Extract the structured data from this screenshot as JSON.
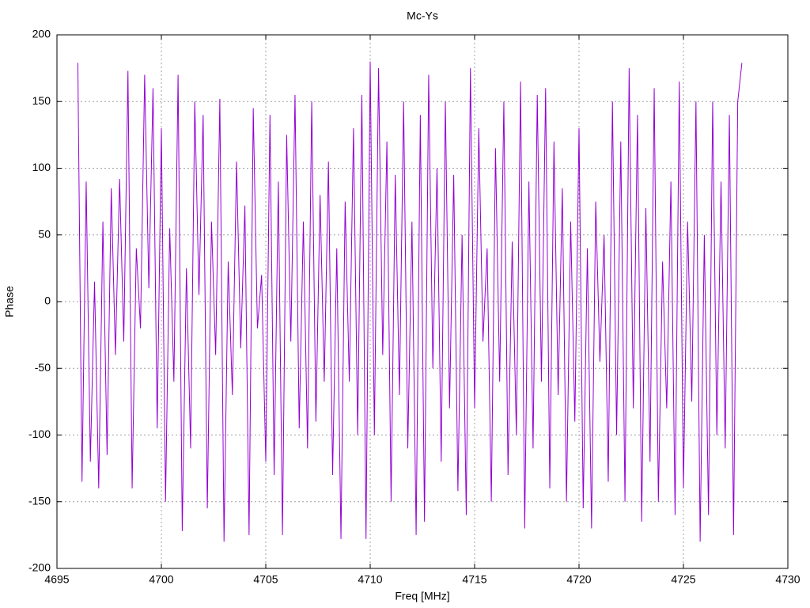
{
  "chart_data": {
    "type": "line",
    "title": "Mc-Ys",
    "xlabel": "Freq [MHz]",
    "ylabel": "Phase",
    "xlim": [
      4695,
      4730
    ],
    "xticks": [
      4695,
      4700,
      4705,
      4710,
      4715,
      4720,
      4725,
      4730
    ],
    "ylim": [
      -200,
      200
    ],
    "yticks": [
      -200,
      -150,
      -100,
      -50,
      0,
      50,
      100,
      150,
      200
    ],
    "grid": true,
    "series": [
      {
        "color": "#9400d3",
        "x": [
          4696,
          4696.2,
          4696.4,
          4696.6,
          4696.8,
          4697,
          4697.2,
          4697.4,
          4697.6,
          4697.8,
          4698,
          4698.2,
          4698.4,
          4698.6,
          4698.8,
          4699,
          4699.2,
          4699.4,
          4699.6,
          4699.8,
          4700,
          4700.2,
          4700.4,
          4700.6,
          4700.8,
          4701,
          4701.2,
          4701.4,
          4701.6,
          4701.8,
          4702,
          4702.2,
          4702.4,
          4702.6,
          4702.8,
          4703,
          4703.2,
          4703.4,
          4703.6,
          4703.8,
          4704,
          4704.2,
          4704.4,
          4704.6,
          4704.8,
          4705,
          4705.2,
          4705.4,
          4705.6,
          4705.8,
          4706,
          4706.2,
          4706.4,
          4706.6,
          4706.8,
          4707,
          4707.2,
          4707.4,
          4707.6,
          4707.8,
          4708,
          4708.2,
          4708.4,
          4708.6,
          4708.8,
          4709,
          4709.2,
          4709.4,
          4709.6,
          4709.8,
          4710,
          4710.2,
          4710.4,
          4710.6,
          4710.8,
          4711,
          4711.2,
          4711.4,
          4711.6,
          4711.8,
          4712,
          4712.2,
          4712.4,
          4712.6,
          4712.8,
          4713,
          4713.2,
          4713.4,
          4713.6,
          4713.8,
          4714,
          4714.2,
          4714.4,
          4714.6,
          4714.8,
          4715,
          4715.2,
          4715.4,
          4715.6,
          4715.8,
          4716,
          4716.2,
          4716.4,
          4716.6,
          4716.8,
          4717,
          4717.2,
          4717.4,
          4717.6,
          4717.8,
          4718,
          4718.2,
          4718.4,
          4718.6,
          4718.8,
          4719,
          4719.2,
          4719.4,
          4719.6,
          4719.8,
          4720,
          4720.2,
          4720.4,
          4720.6,
          4720.8,
          4721,
          4721.2,
          4721.4,
          4721.6,
          4721.8,
          4722,
          4722.2,
          4722.4,
          4722.6,
          4722.8,
          4723,
          4723.2,
          4723.4,
          4723.6,
          4723.8,
          4724,
          4724.2,
          4724.4,
          4724.6,
          4724.8,
          4725,
          4725.2,
          4725.4,
          4725.6,
          4725.8,
          4726,
          4726.2,
          4726.4,
          4726.6,
          4726.8,
          4727,
          4727.2,
          4727.4,
          4727.6,
          4727.8
        ],
        "values": [
          179,
          -135,
          90,
          -120,
          15,
          -140,
          60,
          -115,
          85,
          -40,
          92,
          -30,
          173,
          -140,
          40,
          -20,
          170,
          10,
          160,
          -95,
          130,
          -150,
          55,
          -60,
          170,
          -172,
          25,
          -110,
          150,
          5,
          140,
          -155,
          60,
          -40,
          152,
          -180,
          30,
          -70,
          105,
          -35,
          72,
          -175,
          145,
          -20,
          20,
          -120,
          140,
          -130,
          90,
          -175,
          125,
          -30,
          155,
          -95,
          60,
          -110,
          150,
          -90,
          80,
          -60,
          105,
          -130,
          40,
          -178,
          75,
          -60,
          130,
          -100,
          155,
          -178,
          180,
          -100,
          175,
          -40,
          120,
          -150,
          95,
          -70,
          150,
          -110,
          60,
          -175,
          140,
          -165,
          170,
          -50,
          100,
          -120,
          150,
          -80,
          95,
          -142,
          50,
          -160,
          175,
          -80,
          130,
          -30,
          40,
          -150,
          115,
          -60,
          150,
          -130,
          45,
          -100,
          165,
          -170,
          90,
          -110,
          155,
          -60,
          160,
          -140,
          120,
          -70,
          85,
          -150,
          60,
          -90,
          130,
          -155,
          40,
          -170,
          75,
          -45,
          50,
          -135,
          150,
          -100,
          120,
          -150,
          175,
          -80,
          140,
          -165,
          70,
          -120,
          160,
          -150,
          30,
          -80,
          90,
          -160,
          165,
          -140,
          60,
          -75,
          150,
          -180,
          50,
          -160,
          150,
          -100,
          90,
          -110,
          140,
          -175,
          150,
          179
        ]
      }
    ]
  }
}
